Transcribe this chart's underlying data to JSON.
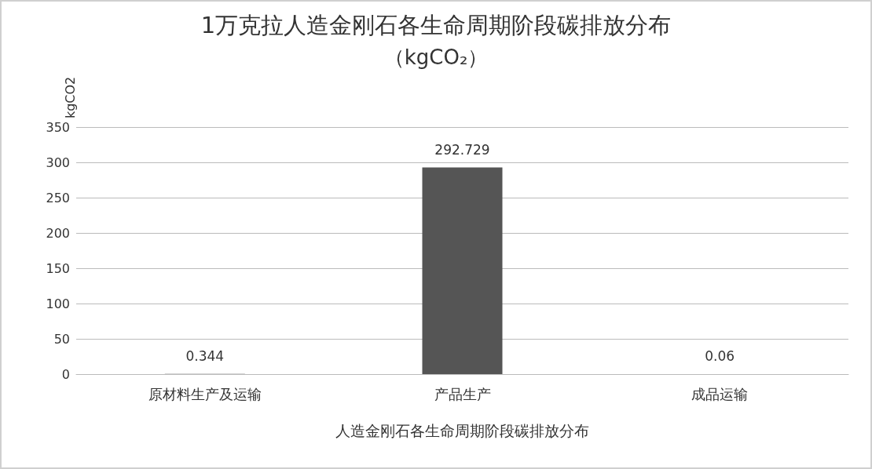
{
  "chart_data": {
    "type": "bar",
    "title": "1万克拉人造金刚石各生命周期阶段碳排放分布",
    "subtitle": "（kgCO₂）",
    "xlabel": "人造金刚石各生命周期阶段碳排放分布",
    "ylabel": "kgCO2",
    "categories": [
      "原材料生产及运输",
      "产品生产",
      "成品运输"
    ],
    "values": [
      0.344,
      292.729,
      0.06
    ],
    "color": "#555555",
    "ylim": [
      0,
      350
    ],
    "yticks": [
      0,
      50,
      100,
      150,
      200,
      250,
      300,
      350
    ],
    "grid": "y",
    "data_labels": true
  }
}
